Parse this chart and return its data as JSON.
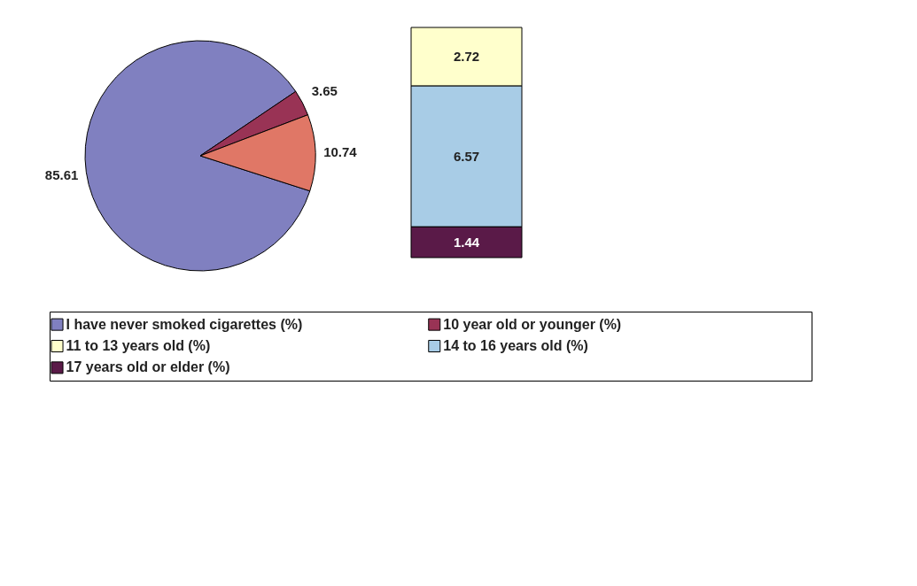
{
  "chart_data": [
    {
      "type": "pie",
      "categories": [
        "I have never smoked cigarettes (%)",
        "10 year old or younger (%)",
        null
      ],
      "values": [
        85.61,
        3.65,
        10.74
      ],
      "colors": [
        "#8080c0",
        "#993355",
        "#e07766"
      ],
      "data_labels": true,
      "legend": "bottom"
    },
    {
      "type": "bar",
      "stacked": true,
      "categories": [
        null
      ],
      "series": [
        {
          "name": "17 years old or elder (%)",
          "color": "#5a1a48",
          "values": [
            1.44
          ]
        },
        {
          "name": "14 to 16 years old (%)",
          "color": "#a8cce6",
          "values": [
            6.57
          ]
        },
        {
          "name": "11 to 13 years old (%)",
          "color": "#ffffcc",
          "values": [
            2.72
          ]
        }
      ],
      "data_labels": true,
      "legend": "bottom"
    }
  ]
}
